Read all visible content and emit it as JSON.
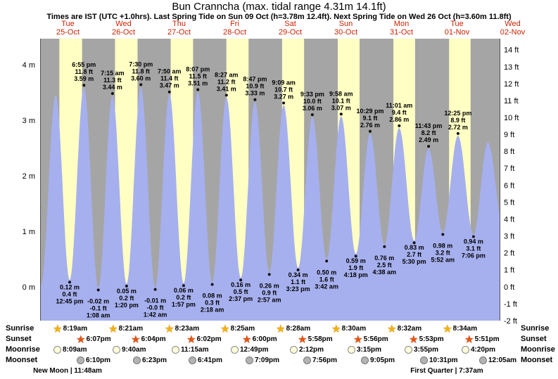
{
  "header": {
    "title": "Bun Cranncha (max. tidal range 4.31m 14.1ft)",
    "subtitle": "Times are IST (UTC +1.0hrs). Last Spring Tide on Sun 09 Oct (h=3.78m 12.4ft). Next Spring Tide on Wed 26 Oct (h=3.60m 11.8ft)"
  },
  "days": [
    {
      "name": "Tue",
      "date": "25-Oct"
    },
    {
      "name": "Wed",
      "date": "26-Oct"
    },
    {
      "name": "Thu",
      "date": "27-Oct"
    },
    {
      "name": "Fri",
      "date": "28-Oct"
    },
    {
      "name": "Sat",
      "date": "29-Oct"
    },
    {
      "name": "Sun",
      "date": "30-Oct"
    },
    {
      "name": "Mon",
      "date": "31-Oct"
    },
    {
      "name": "Tue",
      "date": "01-Nov"
    },
    {
      "name": "Wed",
      "date": "02-Nov"
    }
  ],
  "chart_data": {
    "type": "area",
    "series_label": "tide height",
    "x_unit": "days since Tue 25-Oct 00:00 IST",
    "x_range_days": [
      0,
      8.278
    ],
    "y_left": {
      "unit": "m",
      "ticks": [
        "4 m",
        "3 m",
        "2 m",
        "1 m",
        "0 m"
      ]
    },
    "y_right": {
      "unit": "ft",
      "ticks": [
        "14 ft",
        "13 ft",
        "12 ft",
        "11 ft",
        "10 ft",
        "9 ft",
        "8 ft",
        "7 ft",
        "6 ft",
        "5 ft",
        "4 ft",
        "3 ft",
        "2 ft",
        "1 ft",
        "0 ft",
        "-1 ft",
        "-2 ft"
      ]
    },
    "colors": {
      "night": "#a5a5a5",
      "day": "#ffffc4",
      "tide": "#a6b0ee",
      "label_red": "#cc2200"
    },
    "tide_events": [
      {
        "t": 0.015,
        "type": "low",
        "height_m": 0.03
      },
      {
        "t": 0.28,
        "type": "high",
        "height_m": 3.45
      },
      {
        "t": 0.5313,
        "type": "low",
        "height_m": 0.12,
        "lines": [
          "0.12 m",
          "0.4 ft",
          "12:45 pm"
        ]
      },
      {
        "t": 0.7882,
        "type": "high",
        "height_m": 3.59,
        "lines": [
          "6:55 pm",
          "11.8 ft",
          "3.59 m"
        ]
      },
      {
        "t": 1.0472,
        "type": "low",
        "height_m": -0.02,
        "lines": [
          "-0.02 m",
          "-0.1 ft",
          "1:08 am"
        ]
      },
      {
        "t": 1.3021,
        "type": "high",
        "height_m": 3.44,
        "lines": [
          "7:15 am",
          "11.3 ft",
          "3.44 m"
        ]
      },
      {
        "t": 1.5556,
        "type": "low",
        "height_m": 0.05,
        "lines": [
          "0.05 m",
          "0.2 ft",
          "1:20 pm"
        ]
      },
      {
        "t": 1.8125,
        "type": "high",
        "height_m": 3.6,
        "lines": [
          "7:30 pm",
          "11.8 ft",
          "3.60 m"
        ]
      },
      {
        "t": 2.0708,
        "type": "low",
        "height_m": -0.01,
        "lines": [
          "-0.01 m",
          "-0.0 ft",
          "1:42 am"
        ]
      },
      {
        "t": 2.3264,
        "type": "high",
        "height_m": 3.47,
        "lines": [
          "7:50 am",
          "11.4 ft",
          "3.47 m"
        ]
      },
      {
        "t": 2.5813,
        "type": "low",
        "height_m": 0.06,
        "lines": [
          "0.06 m",
          "0.2 ft",
          "1:57 pm"
        ]
      },
      {
        "t": 2.8382,
        "type": "high",
        "height_m": 3.51,
        "lines": [
          "8:07 pm",
          "11.5 ft",
          "3.51 m"
        ]
      },
      {
        "t": 3.0958,
        "type": "low",
        "height_m": 0.08,
        "lines": [
          "0.08 m",
          "0.3 ft",
          "2:18 am"
        ]
      },
      {
        "t": 3.3521,
        "type": "high",
        "height_m": 3.41,
        "lines": [
          "8:27 am",
          "11.2 ft",
          "3.41 m"
        ]
      },
      {
        "t": 3.609,
        "type": "low",
        "height_m": 0.16,
        "lines": [
          "0.16 m",
          "0.5 ft",
          "2:37 pm"
        ]
      },
      {
        "t": 3.866,
        "type": "high",
        "height_m": 3.33,
        "lines": [
          "8:47 pm",
          "10.9 ft",
          "3.33 m"
        ]
      },
      {
        "t": 4.1229,
        "type": "low",
        "height_m": 0.26,
        "lines": [
          "0.26 m",
          "0.9 ft",
          "2:57 am"
        ]
      },
      {
        "t": 4.3813,
        "type": "high",
        "height_m": 3.27,
        "lines": [
          "9:09 am",
          "10.7 ft",
          "3.27 m"
        ]
      },
      {
        "t": 4.641,
        "type": "low",
        "height_m": 0.34,
        "lines": [
          "0.34 m",
          "1.1 ft",
          "3:23 pm"
        ]
      },
      {
        "t": 4.8979,
        "type": "high",
        "height_m": 3.06,
        "lines": [
          "9:33 pm",
          "10.0 ft",
          "3.06 m"
        ]
      },
      {
        "t": 5.1542,
        "type": "low",
        "height_m": 0.5,
        "lines": [
          "0.50 m",
          "1.6 ft",
          "3:42 am"
        ]
      },
      {
        "t": 5.4153,
        "type": "high",
        "height_m": 3.07,
        "lines": [
          "9:58 am",
          "10.1 ft",
          "3.07 m"
        ]
      },
      {
        "t": 5.6792,
        "type": "low",
        "height_m": 0.59,
        "lines": [
          "0.59 m",
          "1.9 ft",
          "4:18 pm"
        ]
      },
      {
        "t": 5.9368,
        "type": "high",
        "height_m": 2.76,
        "lines": [
          "10:29 pm",
          "9.1 ft",
          "2.76 m"
        ]
      },
      {
        "t": 6.1931,
        "type": "low",
        "height_m": 0.76,
        "lines": [
          "0.76 m",
          "2.5 ft",
          "4:38 am"
        ]
      },
      {
        "t": 6.459,
        "type": "high",
        "height_m": 2.86,
        "lines": [
          "11:01 am",
          "9.4 ft",
          "2.86 m"
        ]
      },
      {
        "t": 6.7292,
        "type": "low",
        "height_m": 0.83,
        "lines": [
          "0.83 m",
          "2.7 ft",
          "5:30 pm"
        ]
      },
      {
        "t": 6.9882,
        "type": "high",
        "height_m": 2.49,
        "lines": [
          "11:43 pm",
          "8.2 ft",
          "2.49 m"
        ]
      },
      {
        "t": 7.2444,
        "type": "low",
        "height_m": 0.98,
        "lines": [
          "0.98 m",
          "3.2 ft",
          "5:52 am"
        ]
      },
      {
        "t": 7.5174,
        "type": "high",
        "height_m": 2.72,
        "lines": [
          "12:25 pm",
          "8.9 ft",
          "2.72 m"
        ]
      },
      {
        "t": 7.7958,
        "type": "low",
        "height_m": 0.94,
        "lines": [
          "0.94 m",
          "3.1 ft",
          "7:06 pm"
        ]
      },
      {
        "t": 8.055,
        "type": "high",
        "height_m": 2.6
      },
      {
        "t": 8.33,
        "type": "low",
        "height_m": 1.1
      }
    ]
  },
  "astro": {
    "rows": [
      {
        "id": "sunrise",
        "label": "Sunrise",
        "icon": "sunrise-star-icon",
        "times": [
          {
            "day": 0,
            "time": "8:19am"
          },
          {
            "day": 1,
            "time": "8:21am"
          },
          {
            "day": 2,
            "time": "8:23am"
          },
          {
            "day": 3,
            "time": "8:25am"
          },
          {
            "day": 4,
            "time": "8:28am"
          },
          {
            "day": 5,
            "time": "8:30am"
          },
          {
            "day": 6,
            "time": "8:32am"
          },
          {
            "day": 7,
            "time": "8:34am"
          }
        ]
      },
      {
        "id": "sunset",
        "label": "Sunset",
        "icon": "sunset-star-icon",
        "times": [
          {
            "day": 0,
            "time": "6:07pm"
          },
          {
            "day": 1,
            "time": "6:04pm"
          },
          {
            "day": 2,
            "time": "6:02pm"
          },
          {
            "day": 3,
            "time": "6:00pm"
          },
          {
            "day": 4,
            "time": "5:58pm"
          },
          {
            "day": 5,
            "time": "5:56pm"
          },
          {
            "day": 6,
            "time": "5:53pm"
          },
          {
            "day": 7,
            "time": "5:51pm"
          }
        ]
      },
      {
        "id": "moonrise",
        "label": "Moonrise",
        "icon": "moonrise-circle-icon",
        "times": [
          {
            "day": 0,
            "time": "8:09am"
          },
          {
            "day": 1,
            "time": "9:40am"
          },
          {
            "day": 2,
            "time": "11:15am"
          },
          {
            "day": 3,
            "time": "12:49pm"
          },
          {
            "day": 4,
            "time": "2:12pm"
          },
          {
            "day": 5,
            "time": "3:15pm"
          },
          {
            "day": 6,
            "time": "3:55pm"
          },
          {
            "day": 7,
            "time": "4:20pm"
          }
        ]
      },
      {
        "id": "moonset",
        "label": "Moonset",
        "icon": "moonset-circle-icon",
        "times": [
          {
            "day": 0,
            "time": "6:10pm"
          },
          {
            "day": 1,
            "time": "6:23pm"
          },
          {
            "day": 2,
            "time": "6:41pm"
          },
          {
            "day": 3,
            "time": "7:09pm"
          },
          {
            "day": 4,
            "time": "7:56pm"
          },
          {
            "day": 5,
            "time": "9:05pm"
          },
          {
            "day": 6,
            "time": "10:31pm"
          },
          {
            "day": 8,
            "time": "12:05am"
          }
        ]
      }
    ],
    "notes": [
      {
        "text": "New Moon | 11:48am",
        "day": 0,
        "time": "11:48am"
      },
      {
        "text": "First Quarter | 7:37am",
        "day": 7,
        "time": "7:37am"
      }
    ]
  }
}
